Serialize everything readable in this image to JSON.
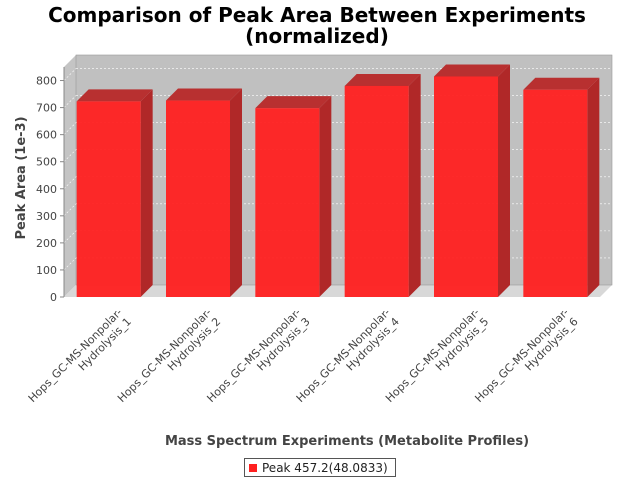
{
  "chart_data": {
    "type": "bar",
    "title_lines": [
      "Comparison of Peak Area Between Experiments",
      "(normalized)"
    ],
    "xlabel": "Mass Spectrum Experiments (Metabolite Profiles)",
    "ylabel": "Peak Area (1e-3)",
    "ylim": [
      0,
      850
    ],
    "yticks": [
      0,
      100,
      200,
      300,
      400,
      500,
      600,
      700,
      800
    ],
    "grid": true,
    "categories": [
      [
        "Hops_GC-MS-Nonpolar-",
        "Hydrolysis_1"
      ],
      [
        "Hops_GC-MS-Nonpolar-",
        "Hydrolysis_2"
      ],
      [
        "Hops_GC-MS-Nonpolar-",
        "Hydrolysis_3"
      ],
      [
        "Hops_GC-MS-Nonpolar-",
        "Hydrolysis_4"
      ],
      [
        "Hops_GC-MS-Nonpolar-",
        "Hydrolysis_5"
      ],
      [
        "Hops_GC-MS-Nonpolar-",
        "Hydrolysis_6"
      ]
    ],
    "series": [
      {
        "name": "Peak 457.2(48.0833)",
        "values": [
          723,
          726,
          698,
          780,
          815,
          766
        ],
        "color": "#ff2020"
      }
    ],
    "legend_position": "bottom-center"
  }
}
